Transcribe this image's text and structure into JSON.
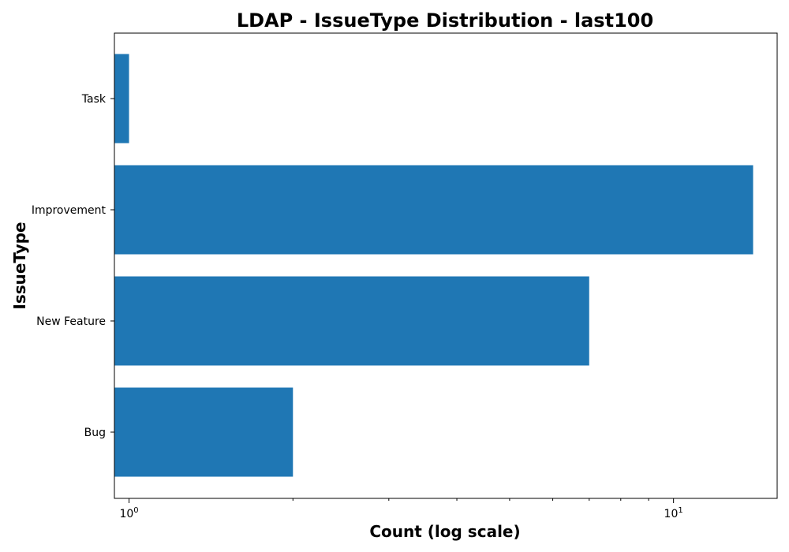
{
  "chart_data": {
    "type": "bar",
    "orientation": "horizontal",
    "title": "LDAP - IssueType Distribution - last100",
    "xlabel": "Count (log scale)",
    "ylabel": "IssueType",
    "x_scale": "log",
    "xlim": [
      0.94,
      15.5
    ],
    "x_ticks": [
      {
        "base": "10",
        "exp": "0",
        "value": 1
      },
      {
        "base": "10",
        "exp": "1",
        "value": 10
      }
    ],
    "categories": [
      "Bug",
      "New Feature",
      "Improvement",
      "Task"
    ],
    "values": [
      2,
      7,
      14,
      1
    ],
    "bar_color": "#1f77b4",
    "grid": false,
    "legend": "none"
  }
}
